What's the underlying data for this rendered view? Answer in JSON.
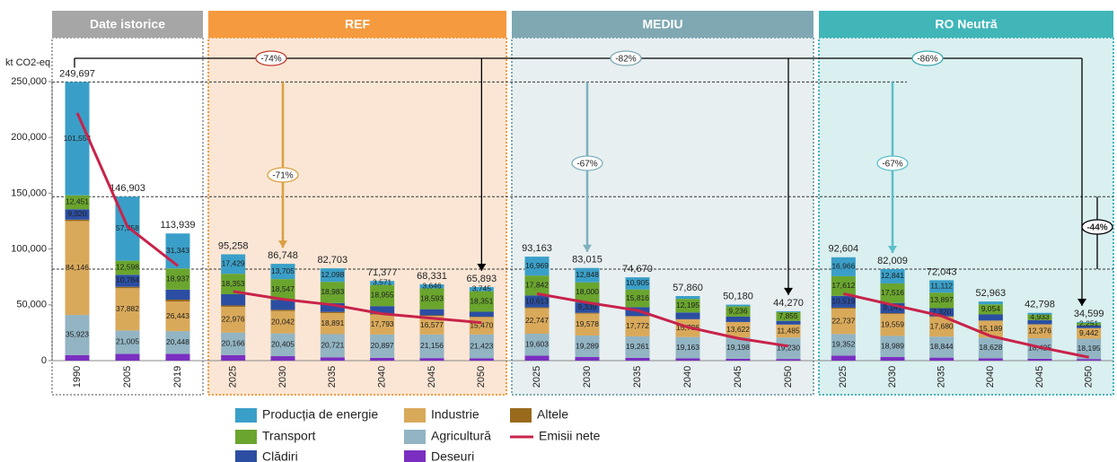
{
  "chart_data": {
    "type": "stacked-bar",
    "y_unit": "kt CO2-eq",
    "ylim": [
      0,
      250000
    ],
    "yticks": [
      0,
      {
        "value": 50000,
        "label": "50,000"
      },
      {
        "value": 100000,
        "label": "100,000"
      },
      {
        "value": 150000,
        "label": "150,000"
      },
      {
        "value": 200000,
        "label": "200,000"
      },
      {
        "value": 250000,
        "label": "250,000"
      }
    ],
    "groups": [
      {
        "name": "Date istorice",
        "count": 3,
        "color": "#a6a6a6",
        "background": "#ffffff"
      },
      {
        "name": "REF",
        "count": 6,
        "color": "#f59a3e",
        "background": "#fbe6d5"
      },
      {
        "name": "MEDIU",
        "count": 6,
        "color": "#7fa8b3",
        "background": "#e7eff1"
      },
      {
        "name": "RO Neutră",
        "count": 6,
        "color": "#40b6b9",
        "background": "#daeff0"
      }
    ],
    "categories": [
      "1990",
      "2005",
      "2019",
      "2025",
      "2030",
      "2035",
      "2040",
      "2045",
      "2050",
      "2025",
      "2030",
      "2035",
      "2040",
      "2045",
      "2050",
      "2025",
      "2030",
      "2035",
      "2040",
      "2045",
      "2050"
    ],
    "series": [
      {
        "name": "Producția de energie",
        "color": "#3a9fc8",
        "values": [
          101554,
          57358,
          31343,
          17429,
          13705,
          12098,
          3571,
          3646,
          3745,
          16969,
          12848,
          10905,
          2500,
          1500,
          800,
          16966,
          12841,
          11112,
          2500,
          1500,
          700
        ],
        "value_labels": [
          "101,554",
          "57,358",
          "31,343",
          "17,429",
          "13,705",
          "12,098",
          "3,571",
          "3,646",
          "3,745",
          "16,969",
          "12,848",
          "10,905",
          null,
          null,
          null,
          "16,966",
          "12,841",
          "11,112",
          null,
          null,
          null
        ]
      },
      {
        "name": "Transport",
        "color": "#6aa52e",
        "values": [
          12451,
          12598,
          18937,
          18353,
          18547,
          18983,
          18955,
          18593,
          18351,
          17842,
          18000,
          15816,
          12195,
          9236,
          7855,
          17612,
          17516,
          13897,
          9054,
          4933,
          2251
        ],
        "value_labels": [
          "12,451",
          "12,598",
          "18,937",
          "18,353",
          "18,547",
          "18,983",
          "18,955",
          "18,593",
          "18,351",
          "17,842",
          "18,000",
          "15,816",
          "12,195",
          "9,236",
          "7,855",
          "17,612",
          "17,516",
          "13,897",
          "9,054",
          "4,933",
          "2,251"
        ]
      },
      {
        "name": "Clădiri",
        "color": "#2b4ea2",
        "values": [
          9320,
          10784,
          9000,
          10000,
          9000,
          8000,
          7000,
          5500,
          4500,
          10613,
          9339,
          8000,
          6000,
          4800,
          3300,
          10519,
          9141,
          7320,
          5500,
          3800,
          2500
        ],
        "value_labels": [
          "9,320",
          "10,784",
          null,
          null,
          null,
          null,
          null,
          null,
          null,
          "10,613",
          "9,339",
          null,
          null,
          null,
          null,
          "10,519",
          "9,141",
          "7,320",
          null,
          null,
          null
        ]
      },
      {
        "name": "Industrie",
        "color": "#d9a95a",
        "values": [
          84146,
          37882,
          26443,
          22976,
          20042,
          18891,
          17793,
          16577,
          15470,
          22747,
          19578,
          17772,
          15786,
          13622,
          11485,
          22737,
          19559,
          17680,
          15189,
          12376,
          9442
        ],
        "value_labels": [
          "84,146",
          "37,882",
          "26,443",
          "22,976",
          "20,042",
          "18,891",
          "17,793",
          "16,577",
          "15,470",
          "22,747",
          "19,578",
          "17,772",
          "15,786",
          "13,622",
          "11,485",
          "22,737",
          "19,559",
          "17,680",
          "15,189",
          "12,376",
          "9,442"
        ]
      },
      {
        "name": "Agricultură",
        "color": "#92b4c3",
        "values": [
          35923,
          21005,
          20448,
          20166,
          20405,
          20721,
          20897,
          21156,
          21423,
          19603,
          19289,
          19261,
          19163,
          19198,
          19230,
          19352,
          18989,
          18844,
          18628,
          18425,
          18195
        ],
        "value_labels": [
          "35,923",
          "21,005",
          "20,448",
          "20,166",
          "20,405",
          "20,721",
          "20,897",
          "21,156",
          "21,423",
          "19,603",
          "19,289",
          "19,261",
          "19,163",
          "19,198",
          "19,230",
          "19,352",
          "18,989",
          "18,844",
          "18,628",
          "18,425",
          "18,195"
        ]
      },
      {
        "name": "Deseuri",
        "color": "#7a2fc0",
        "values": [
          5000,
          6000,
          6000,
          5000,
          4000,
          3000,
          2500,
          2300,
          2000,
          4500,
          3200,
          2500,
          2000,
          1700,
          1500,
          4500,
          3200,
          2700,
          2000,
          1700,
          1450
        ]
      },
      {
        "name": "Altele",
        "color": "#9a6a1c",
        "values": [
          1303,
          1276,
          1768,
          1334,
          1049,
          1010,
          661,
          559,
          404,
          889,
          761,
          416,
          216,
          124,
          100,
          918,
          763,
          490,
          92,
          64,
          61
        ]
      }
    ],
    "totals": [
      249697,
      146903,
      113939,
      95258,
      86748,
      82703,
      71377,
      68331,
      65893,
      93163,
      83015,
      74670,
      57860,
      50180,
      44270,
      92604,
      82009,
      72043,
      52963,
      42798,
      34599
    ],
    "total_labels": [
      "249,697",
      "146,903",
      "113,939",
      "95,258",
      "86,748",
      "82,703",
      "71,377",
      "68,331",
      "65,893",
      "93,163",
      "83,015",
      "74,670",
      "57,860",
      "50,180",
      "44,270",
      "92,604",
      "82,009",
      "72,043",
      "52,963",
      "42,798",
      "34,599"
    ],
    "line": {
      "name": "Emisii nete",
      "color": "#c8234a",
      "values": [
        222000,
        120000,
        85000,
        62000,
        55000,
        50000,
        42000,
        38000,
        34000,
        60000,
        52000,
        45000,
        30000,
        20000,
        13000,
        60000,
        50000,
        40000,
        22000,
        12000,
        3000
      ]
    },
    "annotations": [
      "-74%",
      "-71%",
      "-82%",
      "-67%",
      "-86%",
      "-67%",
      "-44%"
    ]
  }
}
